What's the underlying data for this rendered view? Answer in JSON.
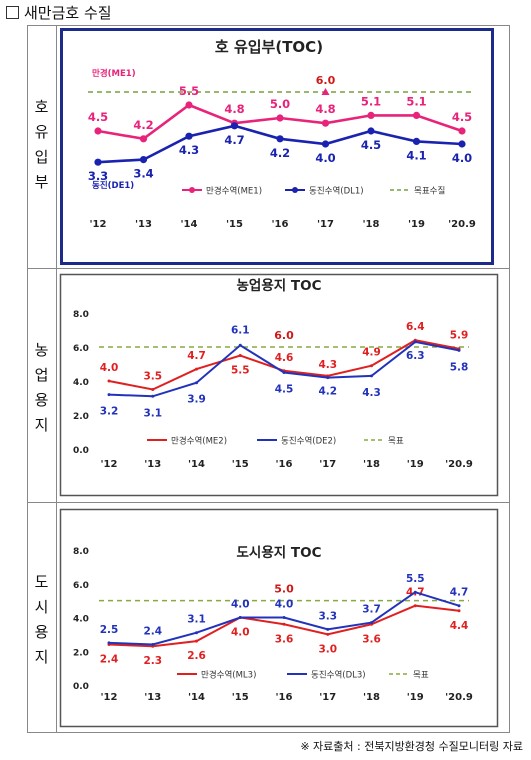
{
  "page_title": "새만금호 수질",
  "source": "※ 자료출처 : 전북지방환경청 수질모니터링 자료",
  "row_labels": [
    "호\n유\n입\n부",
    "농\n업\n용\n지",
    "도\n시\n용\n지"
  ],
  "chart_data": [
    {
      "type": "line",
      "title": "호 유입부(TOC)",
      "categories": [
        "'12",
        "'13",
        "'14",
        "'15",
        "'16",
        "'17",
        "'18",
        "'19",
        "'20.9"
      ],
      "series": [
        {
          "name": "만경수역(ME1)",
          "color": "#e8237a",
          "values": [
            4.5,
            4.2,
            5.5,
            4.8,
            5.0,
            4.8,
            5.1,
            5.1,
            4.5
          ]
        },
        {
          "name": "동진수역(DL1)",
          "color": "#1a23b0",
          "values": [
            3.3,
            3.4,
            4.3,
            4.7,
            4.2,
            4.0,
            4.5,
            4.1,
            4.0
          ]
        },
        {
          "name": "목표수질",
          "color": "#77a040",
          "values": [
            6.0,
            6.0,
            6.0,
            6.0,
            6.0,
            6.0,
            6.0,
            6.0,
            6.0
          ]
        }
      ],
      "target_label": "6.0",
      "line_tags": [
        "만경(ME1)",
        "동진(DE1)"
      ],
      "ylim": [
        2.0,
        7.0
      ],
      "show_y_ticks": false
    },
    {
      "type": "line",
      "title": "농업용지 TOC",
      "categories": [
        "'12",
        "'13",
        "'14",
        "'15",
        "'16",
        "'17",
        "'18",
        "'19",
        "'20.9"
      ],
      "series": [
        {
          "name": "만경수역(ME2)",
          "color": "#e02020",
          "values": [
            4.0,
            3.5,
            4.7,
            5.5,
            4.6,
            4.3,
            4.9,
            6.4,
            5.9
          ]
        },
        {
          "name": "동진수역(DE2)",
          "color": "#2233bb",
          "values": [
            3.2,
            3.1,
            3.9,
            6.1,
            4.5,
            4.2,
            4.3,
            6.3,
            5.8
          ]
        },
        {
          "name": "목표",
          "color": "#88a840",
          "values": [
            6.0,
            6.0,
            6.0,
            6.0,
            6.0,
            6.0,
            6.0,
            6.0,
            6.0
          ]
        }
      ],
      "target_label": "6.0",
      "ylim": [
        0.0,
        8.0
      ],
      "yticks": [
        "0.0",
        "2.0",
        "4.0",
        "6.0",
        "8.0"
      ]
    },
    {
      "type": "line",
      "title": "도시용지 TOC",
      "categories": [
        "'12",
        "'13",
        "'14",
        "'15",
        "'16",
        "'17",
        "'18",
        "'19",
        "'20.9"
      ],
      "series": [
        {
          "name": "만경수역(ML3)",
          "color": "#e02020",
          "values": [
            2.4,
            2.3,
            2.6,
            4.0,
            3.6,
            3.0,
            3.6,
            4.7,
            4.4
          ]
        },
        {
          "name": "동진수역(DL3)",
          "color": "#2233bb",
          "values": [
            2.5,
            2.4,
            3.1,
            4.0,
            4.0,
            3.3,
            3.7,
            5.5,
            4.7
          ]
        },
        {
          "name": "목표",
          "color": "#88a840",
          "values": [
            5.0,
            5.0,
            5.0,
            5.0,
            5.0,
            5.0,
            5.0,
            5.0,
            5.0
          ]
        }
      ],
      "target_label": "5.0",
      "ylim": [
        0.0,
        8.0
      ],
      "yticks": [
        "0.0",
        "2.0",
        "4.0",
        "6.0",
        "8.0"
      ]
    }
  ]
}
